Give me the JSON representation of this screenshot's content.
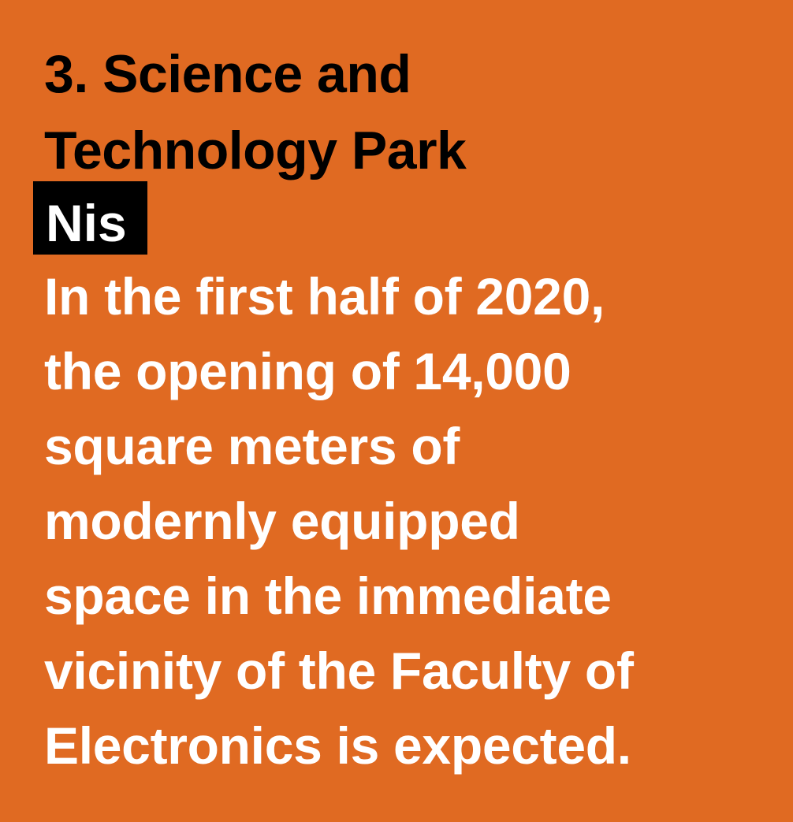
{
  "heading": {
    "lines": [
      "3. Science and",
      "Technology Park"
    ]
  },
  "tag": "Nis",
  "body": {
    "lines": [
      "In the first half of 2020,",
      "the opening of 14,000",
      "square meters of",
      "modernly equipped",
      "space in the immediate",
      "vicinity of the Faculty of",
      "Electronics is expected."
    ]
  },
  "colors": {
    "background": "#E06A22",
    "heading": "#000000",
    "tag_bg": "#000000",
    "body_text": "#FFFFFF"
  }
}
